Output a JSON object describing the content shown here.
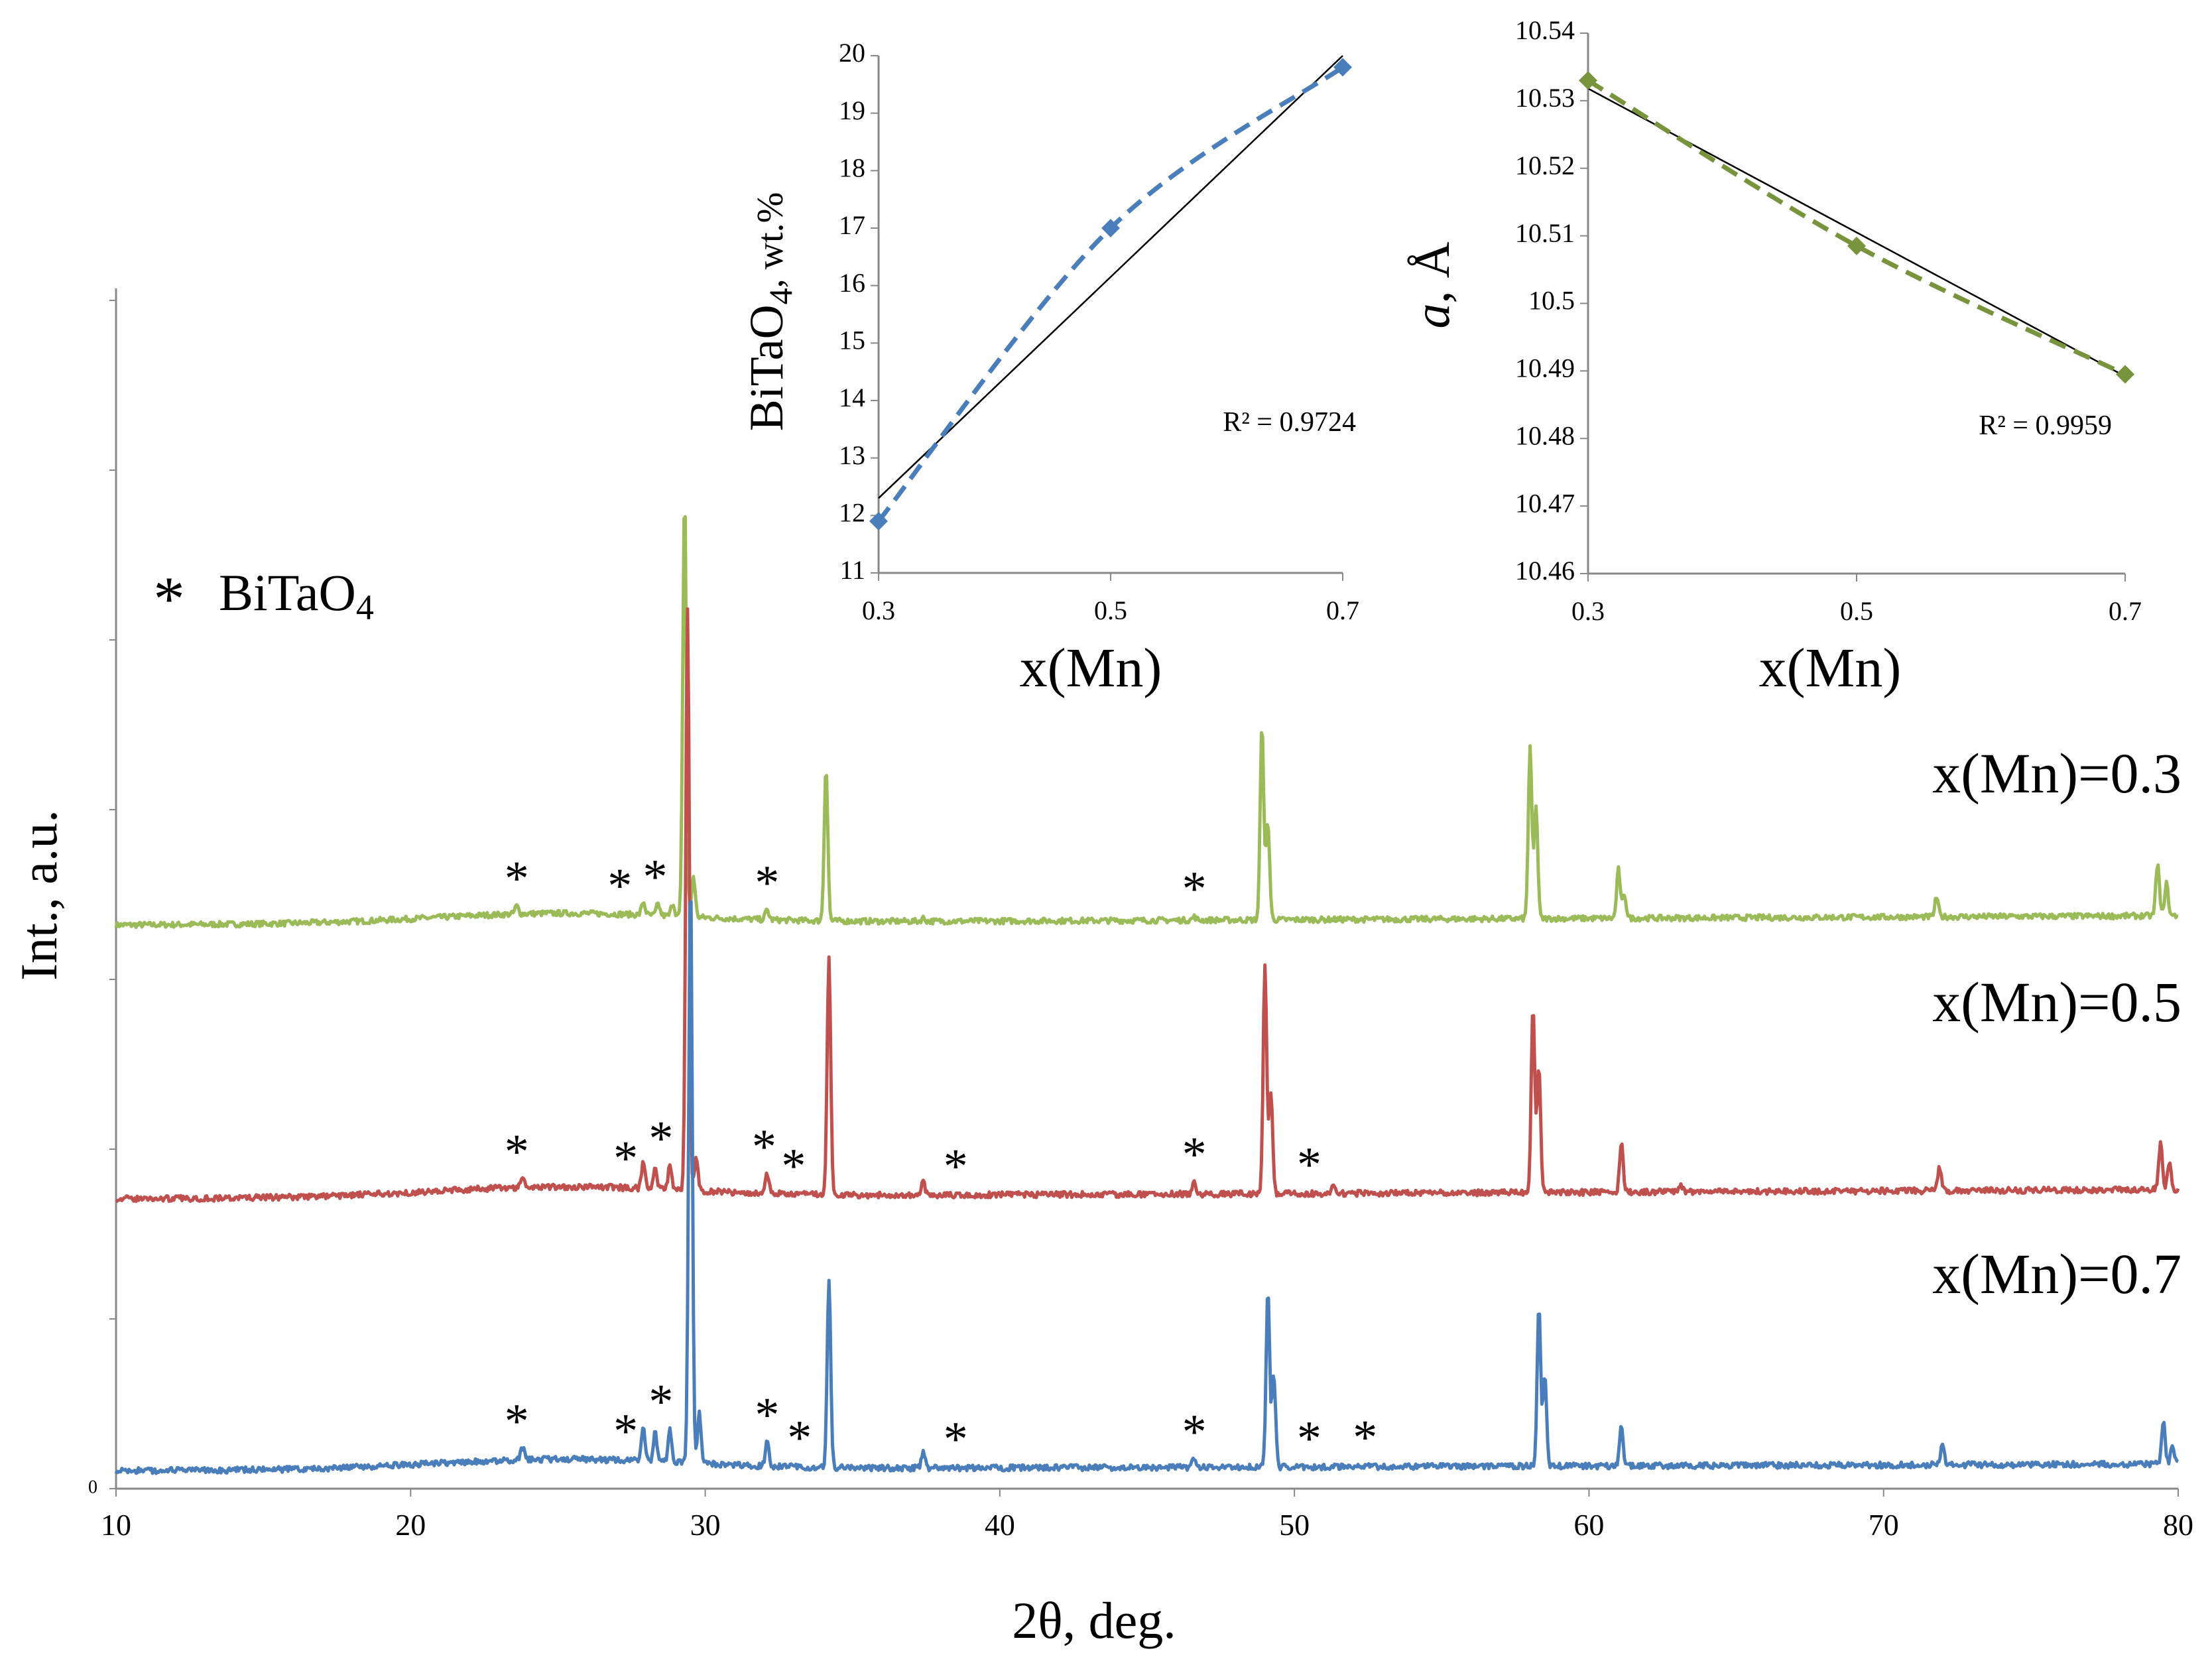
{
  "chart_data": [
    {
      "id": "xrd",
      "type": "line",
      "title": "",
      "xlabel": "2θ, deg.",
      "ylabel": "Int., a.u.",
      "xlim": [
        10,
        80
      ],
      "xticks": [
        10,
        20,
        30,
        40,
        50,
        60,
        70,
        80
      ],
      "ytick_label": "0",
      "grid": false,
      "legend": {
        "marker": "*",
        "text": "BiTaO",
        "sub": "4"
      },
      "series": [
        {
          "name": "x(Mn)=0.3",
          "color": "#9BBB59",
          "baseline": 1.0,
          "peaks": [
            [
              23.6,
              0.05
            ],
            [
              27.9,
              0.08
            ],
            [
              28.4,
              0.07
            ],
            [
              28.9,
              0.08
            ],
            [
              29.3,
              2.6
            ],
            [
              29.6,
              0.25
            ],
            [
              32.1,
              0.06
            ],
            [
              34.1,
              0.95
            ],
            [
              37.4,
              0.02
            ],
            [
              46.6,
              0.02
            ],
            [
              48.9,
              1.2
            ],
            [
              49.1,
              0.6
            ],
            [
              58.0,
              1.05
            ],
            [
              58.2,
              0.7
            ],
            [
              61.0,
              0.3
            ],
            [
              61.2,
              0.15
            ],
            [
              71.8,
              0.12
            ],
            [
              79.3,
              0.32
            ],
            [
              79.6,
              0.2
            ]
          ],
          "stars": [
            23.6,
            27.1,
            28.3,
            32.1,
            46.6
          ]
        },
        {
          "name": "x(Mn)=0.5",
          "color": "#C0504D",
          "baseline": 1.0,
          "peaks": [
            [
              23.8,
              0.06
            ],
            [
              27.9,
              0.15
            ],
            [
              28.3,
              0.12
            ],
            [
              28.8,
              0.14
            ],
            [
              29.4,
              3.45
            ],
            [
              29.7,
              0.2
            ],
            [
              32.1,
              0.12
            ],
            [
              34.2,
              1.4
            ],
            [
              37.4,
              0.08
            ],
            [
              46.6,
              0.08
            ],
            [
              49.0,
              1.35
            ],
            [
              49.2,
              0.6
            ],
            [
              51.3,
              0.04
            ],
            [
              58.1,
              1.1
            ],
            [
              58.3,
              0.75
            ],
            [
              61.1,
              0.3
            ],
            [
              63.1,
              0.04
            ],
            [
              71.9,
              0.14
            ],
            [
              79.4,
              0.28
            ],
            [
              79.7,
              0.15
            ]
          ],
          "stars": [
            23.6,
            27.3,
            28.5,
            32.0,
            33.0,
            38.5,
            46.6,
            50.5
          ]
        },
        {
          "name": "x(Mn)=0.7",
          "color": "#4A7EBB",
          "baseline": 1.0,
          "peaks": [
            [
              23.8,
              0.07
            ],
            [
              27.9,
              0.2
            ],
            [
              28.3,
              0.18
            ],
            [
              28.8,
              0.2
            ],
            [
              29.5,
              3.5
            ],
            [
              29.8,
              0.3
            ],
            [
              32.1,
              0.15
            ],
            [
              34.2,
              1.1
            ],
            [
              37.4,
              0.1
            ],
            [
              46.6,
              0.06
            ],
            [
              49.1,
              1.05
            ],
            [
              49.3,
              0.55
            ],
            [
              58.3,
              0.95
            ],
            [
              58.5,
              0.55
            ],
            [
              61.1,
              0.25
            ],
            [
              72.0,
              0.12
            ],
            [
              79.5,
              0.25
            ],
            [
              79.8,
              0.12
            ]
          ],
          "stars": [
            23.6,
            27.3,
            28.5,
            32.1,
            33.2,
            38.5,
            46.6,
            50.5,
            52.4
          ]
        }
      ]
    },
    {
      "id": "inset-bitao4",
      "type": "scatter",
      "xlabel": "x(Mn)",
      "ylabel_main": "BiTaO",
      "ylabel_sub": "4",
      "ylabel_tail": ", wt.%",
      "x": [
        0.3,
        0.5,
        0.7
      ],
      "y": [
        11.9,
        17.0,
        19.8
      ],
      "xlim": [
        0.3,
        0.7
      ],
      "ylim": [
        11,
        20
      ],
      "xticks": [
        "0.3",
        "0.5",
        "0.7"
      ],
      "yticks": [
        "11",
        "12",
        "13",
        "14",
        "15",
        "16",
        "17",
        "18",
        "19",
        "20"
      ],
      "trendline": {
        "x": [
          0.3,
          0.7
        ],
        "y": [
          12.3,
          20.0
        ],
        "color": "#000000"
      },
      "r2_label": "R² = 0.9724",
      "color": "#4A7EBB"
    },
    {
      "id": "inset-lattice",
      "type": "scatter",
      "xlabel": "x(Mn)",
      "ylabel_main": "a",
      "ylabel_tail": ", Å",
      "x": [
        0.3,
        0.5,
        0.7
      ],
      "y": [
        10.533,
        10.5085,
        10.4895
      ],
      "xlim": [
        0.3,
        0.7
      ],
      "ylim": [
        10.46,
        10.54
      ],
      "xticks": [
        "0.3",
        "0.5",
        "0.7"
      ],
      "yticks": [
        "10.46",
        "10.47",
        "10.48",
        "10.49",
        "10.5",
        "10.51",
        "10.52",
        "10.53",
        "10.54"
      ],
      "trendline": {
        "x": [
          0.3,
          0.7
        ],
        "y": [
          10.5318,
          10.4892
        ],
        "color": "#000000"
      },
      "r2_label": "R² = 0.9959",
      "color": "#77933C"
    }
  ]
}
